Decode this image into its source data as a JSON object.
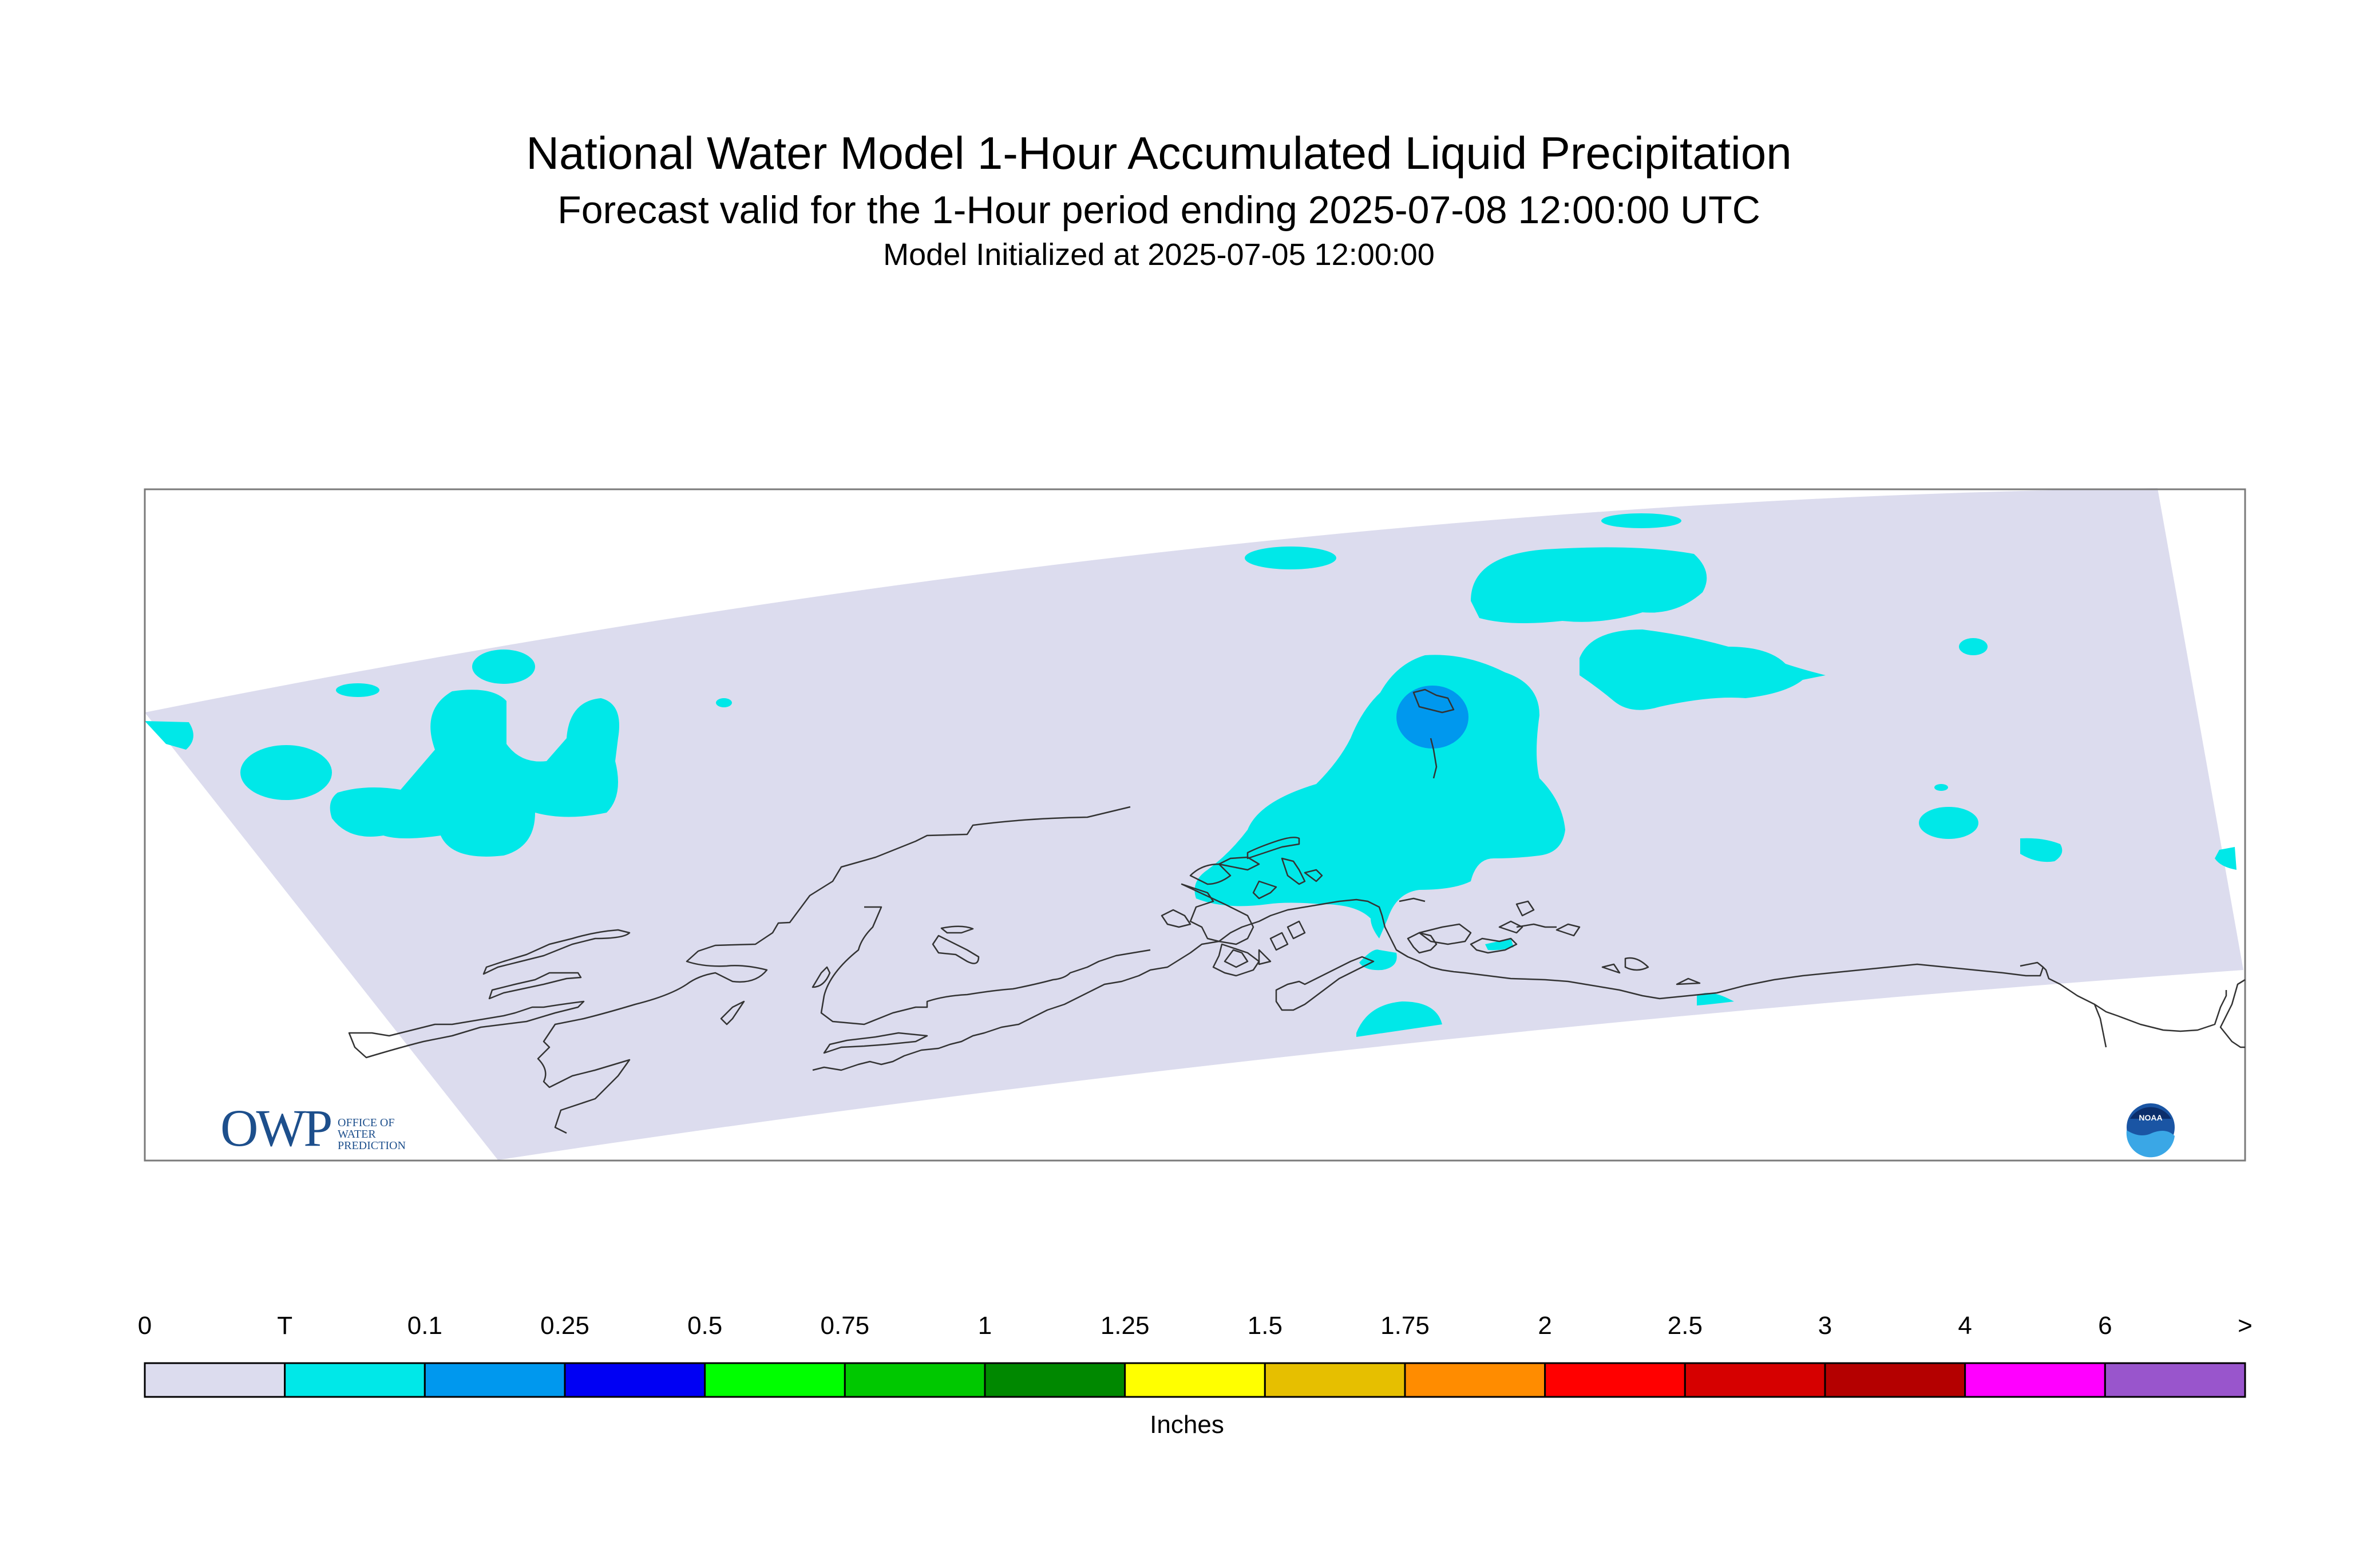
{
  "title": {
    "main": "National Water Model 1-Hour Accumulated Liquid Precipitation",
    "subtitle": "Forecast valid for the 1-Hour period ending 2025-07-08 12:00:00 UTC",
    "init": "Model Initialized at 2025-07-05 12:00:00"
  },
  "colorbar": {
    "ticks": [
      "0",
      "T",
      "0.1",
      "0.25",
      "0.5",
      "0.75",
      "1",
      "1.25",
      "1.5",
      "1.75",
      "2",
      "2.5",
      "3",
      "4",
      "6",
      ">"
    ],
    "colors": [
      "#dcdcee",
      "#00e8e8",
      "#0098ee",
      "#0000f4",
      "#00ff00",
      "#00c800",
      "#008800",
      "#ffff00",
      "#e6bf00",
      "#ff8c00",
      "#ff0000",
      "#d60000",
      "#b40000",
      "#ff00ff",
      "#9955cc"
    ],
    "units": "Inches"
  },
  "logos": {
    "owp_mark": "OWP",
    "owp_text": [
      "OFFICE OF",
      "WATER",
      "PREDICTION"
    ],
    "noaa_text": "NOAA"
  },
  "icons": {
    "owp": "owp-logo-icon",
    "noaa": "noaa-logo-icon"
  }
}
